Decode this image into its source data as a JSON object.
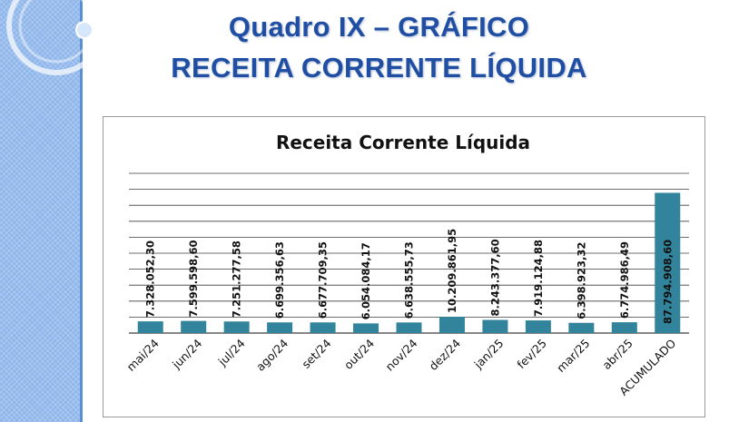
{
  "slide": {
    "title_line1": "Quadro IX – GRÁFICO",
    "title_line2": "RECEITA CORRENTE LÍQUIDA"
  },
  "colors": {
    "bar": "#31849b",
    "gridline": "#3f3f3f",
    "title_text": "#1f4ea3",
    "side_band": "#8fb6ea"
  },
  "chart_data": {
    "type": "bar",
    "title": "Receita Corrente Líquida",
    "categories": [
      "mai/24",
      "jun/24",
      "jul/24",
      "ago/24",
      "set/24",
      "out/24",
      "nov/24",
      "dez/24",
      "jan/25",
      "fev/25",
      "mar/25",
      "abr/25",
      "ACUMULADO"
    ],
    "values": [
      7328052.3,
      7599598.6,
      7251277.58,
      6699356.63,
      6677709.35,
      6054084.17,
      6638555.73,
      10209861.95,
      8243377.6,
      7919124.88,
      6398923.32,
      6774986.49,
      87794908.6
    ],
    "data_labels": [
      "7.328.052,30",
      "7.599.598,60",
      "7.251.277,58",
      "6.699.356,63",
      "6.677.709,35",
      "6.054.084,17",
      "6.638.555,73",
      "10.209.861,95",
      "8.243.377,60",
      "7.919.124,88",
      "6.398.923,32",
      "6.774.986,49",
      "87.794.908,60"
    ],
    "ylim": [
      0,
      100000000
    ],
    "grid": true,
    "legend": "none"
  }
}
